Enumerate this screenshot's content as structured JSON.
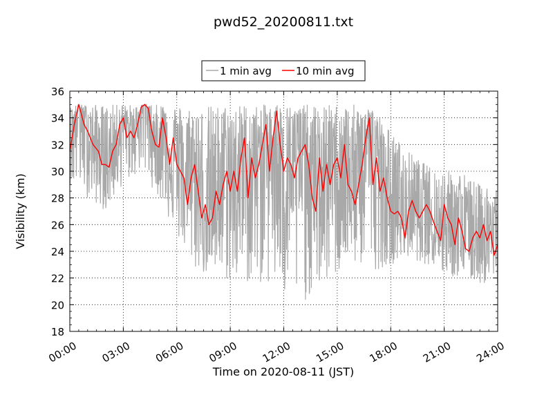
{
  "chart_data": {
    "type": "line",
    "title": "pwd52_20200811.txt",
    "xlabel": "Time on 2020-08-11 (JST)",
    "ylabel": "Visibility (km)",
    "x_tick_labels": [
      "00:00",
      "03:00",
      "06:00",
      "09:00",
      "12:00",
      "15:00",
      "18:00",
      "21:00",
      "24:00"
    ],
    "x_tick_hours": [
      0,
      3,
      6,
      9,
      12,
      15,
      18,
      21,
      24
    ],
    "xlim_hours": [
      0,
      24
    ],
    "y_tick_labels": [
      "18",
      "20",
      "22",
      "24",
      "26",
      "28",
      "30",
      "32",
      "34",
      "36"
    ],
    "ylim": [
      18,
      36
    ],
    "grid": true,
    "legend_position": "top-center-outside",
    "series": [
      {
        "name": "1 min avg",
        "color": "#a9a9a9",
        "envelope": {
          "hours": [
            0,
            1,
            2,
            3,
            4,
            5,
            6,
            7,
            8,
            9,
            10,
            11,
            12,
            13,
            14,
            15,
            16,
            17,
            18,
            19,
            20,
            21,
            22,
            23,
            24
          ],
          "upper": [
            35,
            35,
            35,
            35,
            35,
            35,
            35,
            35,
            35,
            35,
            35,
            35,
            35,
            35,
            35,
            35,
            35,
            35,
            33,
            31.5,
            30.5,
            30,
            30,
            29,
            29
          ],
          "lower": [
            29,
            28,
            27,
            29,
            30,
            28,
            25,
            22.5,
            22,
            21.5,
            21.5,
            21.5,
            20,
            20,
            21,
            22,
            23,
            22.5,
            23,
            23.5,
            23,
            22,
            22,
            21.5,
            21.5
          ]
        }
      },
      {
        "name": "10 min avg",
        "color": "#ff0000",
        "points": {
          "hours": [
            0,
            0.25,
            0.5,
            0.6,
            0.8,
            1.0,
            1.3,
            1.6,
            1.8,
            2.0,
            2.2,
            2.4,
            2.6,
            2.8,
            3.0,
            3.2,
            3.4,
            3.6,
            3.8,
            4.0,
            4.2,
            4.4,
            4.6,
            4.8,
            5.0,
            5.2,
            5.4,
            5.6,
            5.8,
            6.0,
            6.2,
            6.4,
            6.6,
            6.8,
            7.0,
            7.2,
            7.4,
            7.6,
            7.8,
            8.0,
            8.2,
            8.4,
            8.6,
            8.8,
            9.0,
            9.2,
            9.4,
            9.6,
            9.8,
            10.0,
            10.2,
            10.4,
            10.6,
            10.8,
            11.0,
            11.2,
            11.4,
            11.6,
            11.8,
            12.0,
            12.2,
            12.4,
            12.6,
            12.8,
            13.0,
            13.2,
            13.4,
            13.6,
            13.8,
            14.0,
            14.2,
            14.4,
            14.6,
            14.8,
            15.0,
            15.2,
            15.4,
            15.6,
            15.8,
            16.0,
            16.2,
            16.4,
            16.6,
            16.8,
            17.0,
            17.2,
            17.4,
            17.6,
            17.8,
            18.0,
            18.2,
            18.4,
            18.6,
            18.8,
            19.0,
            19.2,
            19.4,
            19.6,
            19.8,
            20.0,
            20.2,
            20.4,
            20.6,
            20.8,
            21.0,
            21.2,
            21.4,
            21.6,
            21.8,
            22.0,
            22.2,
            22.4,
            22.6,
            22.8,
            23.0,
            23.2,
            23.4,
            23.6,
            23.8,
            24.0
          ],
          "values": [
            31.5,
            33.5,
            35,
            34.5,
            33.5,
            33,
            32,
            31.5,
            30.5,
            30.5,
            30.3,
            31.5,
            32,
            33.5,
            34,
            32.5,
            33,
            32.5,
            33.5,
            34.8,
            35,
            34.7,
            33,
            32,
            31.8,
            34,
            32.5,
            30.5,
            32.5,
            30.5,
            30,
            29.5,
            27.5,
            29.5,
            30.5,
            28.5,
            26.5,
            27.5,
            26,
            26.5,
            28.5,
            27.5,
            29,
            30,
            28.5,
            30,
            28.5,
            31,
            32.5,
            28,
            31,
            29.5,
            30.5,
            32,
            33.5,
            30,
            32.5,
            34.5,
            32,
            30,
            31,
            30.5,
            29.5,
            31,
            31.5,
            32,
            30.5,
            28,
            27,
            31,
            28.5,
            30.5,
            29,
            30.5,
            31,
            29.5,
            32,
            29,
            28.5,
            27.5,
            29,
            30.5,
            32.5,
            34,
            29,
            31,
            28.5,
            29.5,
            28,
            27,
            26.8,
            27,
            26.5,
            25,
            27,
            27.8,
            27,
            26.5,
            27,
            27.5,
            27,
            26.2,
            25.5,
            24.8,
            27.5,
            26.5,
            26,
            24.5,
            26.5,
            25.5,
            24.2,
            24,
            25,
            25.5,
            25,
            26,
            24.8,
            25.5,
            23.7,
            24.5
          ]
        }
      }
    ]
  }
}
